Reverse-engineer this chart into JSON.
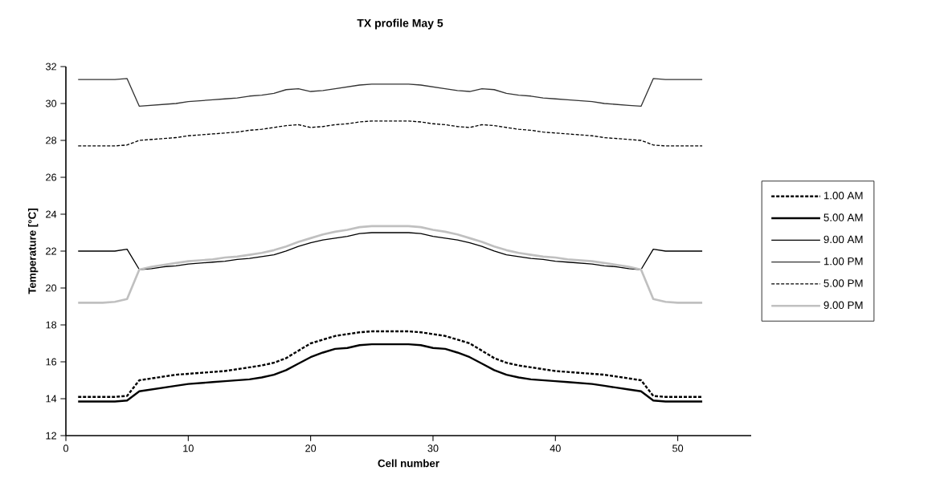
{
  "chart_data": {
    "type": "line",
    "title": "TX profile May 5",
    "xlabel": "Cell number",
    "ylabel": "Temperature [°C]",
    "x": [
      1,
      2,
      3,
      4,
      5,
      6,
      7,
      8,
      9,
      10,
      11,
      12,
      13,
      14,
      15,
      16,
      17,
      18,
      19,
      20,
      21,
      22,
      23,
      24,
      25,
      26,
      27,
      28,
      29,
      30,
      31,
      32,
      33,
      34,
      35,
      36,
      37,
      38,
      39,
      40,
      41,
      42,
      43,
      44,
      45,
      46,
      47,
      48,
      49,
      50,
      51,
      52
    ],
    "xlim": [
      0,
      56
    ],
    "xticks": [
      0,
      10,
      20,
      30,
      40,
      50
    ],
    "ylim": [
      12,
      32
    ],
    "yticks": [
      12,
      14,
      16,
      18,
      20,
      22,
      24,
      26,
      28,
      30,
      32
    ],
    "grid": false,
    "legend": "right",
    "marker": "none",
    "series": [
      {
        "name": "1.00 AM",
        "color": "#000000",
        "line_style": "dashed",
        "values": [
          14.1,
          14.1,
          14.1,
          14.1,
          14.15,
          15.0,
          15.1,
          15.2,
          15.3,
          15.35,
          15.4,
          15.45,
          15.5,
          15.6,
          15.7,
          15.8,
          15.95,
          16.2,
          16.6,
          17.0,
          17.2,
          17.4,
          17.5,
          17.6,
          17.65,
          17.65,
          17.65,
          17.65,
          17.6,
          17.5,
          17.4,
          17.2,
          17.0,
          16.6,
          16.2,
          15.95,
          15.8,
          15.7,
          15.6,
          15.5,
          15.45,
          15.4,
          15.35,
          15.3,
          15.2,
          15.1,
          15.0,
          14.15,
          14.1,
          14.1,
          14.1,
          14.1
        ]
      },
      {
        "name": "5.00 AM",
        "color": "#000000",
        "line_style": "solid",
        "values": [
          13.85,
          13.85,
          13.85,
          13.85,
          13.9,
          14.4,
          14.5,
          14.6,
          14.7,
          14.8,
          14.85,
          14.9,
          14.95,
          15.0,
          15.05,
          15.15,
          15.3,
          15.55,
          15.9,
          16.25,
          16.5,
          16.7,
          16.75,
          16.9,
          16.95,
          16.95,
          16.95,
          16.95,
          16.9,
          16.75,
          16.7,
          16.5,
          16.25,
          15.9,
          15.55,
          15.3,
          15.15,
          15.05,
          15.0,
          14.95,
          14.9,
          14.85,
          14.8,
          14.7,
          14.6,
          14.5,
          14.4,
          13.9,
          13.85,
          13.85,
          13.85,
          13.85
        ]
      },
      {
        "name": "9.00 AM",
        "color": "#000000",
        "line_style": "solid",
        "values": [
          22.0,
          22.0,
          22.0,
          22.0,
          22.1,
          21.0,
          21.05,
          21.15,
          21.2,
          21.3,
          21.35,
          21.4,
          21.45,
          21.55,
          21.6,
          21.7,
          21.8,
          22.0,
          22.25,
          22.45,
          22.6,
          22.7,
          22.8,
          22.95,
          23.0,
          23.0,
          23.0,
          23.0,
          22.95,
          22.8,
          22.7,
          22.6,
          22.45,
          22.25,
          22.0,
          21.8,
          21.7,
          21.6,
          21.55,
          21.45,
          21.4,
          21.35,
          21.3,
          21.2,
          21.15,
          21.05,
          21.0,
          22.1,
          22.0,
          22.0,
          22.0,
          22.0
        ]
      },
      {
        "name": "1.00 PM",
        "color": "#333333",
        "line_style": "solid",
        "values": [
          31.3,
          31.3,
          31.3,
          31.3,
          31.35,
          29.85,
          29.9,
          29.95,
          30.0,
          30.1,
          30.15,
          30.2,
          30.25,
          30.3,
          30.4,
          30.45,
          30.55,
          30.75,
          30.8,
          30.65,
          30.7,
          30.8,
          30.9,
          31.0,
          31.05,
          31.05,
          31.05,
          31.05,
          31.0,
          30.9,
          30.8,
          30.7,
          30.65,
          30.8,
          30.75,
          30.55,
          30.45,
          30.4,
          30.3,
          30.25,
          30.2,
          30.15,
          30.1,
          30.0,
          29.95,
          29.9,
          29.85,
          31.35,
          31.3,
          31.3,
          31.3,
          31.3
        ]
      },
      {
        "name": "5.00 PM",
        "color": "#000000",
        "line_style": "dashed",
        "values": [
          27.7,
          27.7,
          27.7,
          27.7,
          27.75,
          28.0,
          28.05,
          28.1,
          28.15,
          28.25,
          28.3,
          28.35,
          28.4,
          28.45,
          28.55,
          28.6,
          28.7,
          28.8,
          28.85,
          28.7,
          28.75,
          28.85,
          28.9,
          29.0,
          29.05,
          29.05,
          29.05,
          29.05,
          29.0,
          28.9,
          28.85,
          28.75,
          28.7,
          28.85,
          28.8,
          28.7,
          28.6,
          28.55,
          28.45,
          28.4,
          28.35,
          28.3,
          28.25,
          28.15,
          28.1,
          28.05,
          28.0,
          27.75,
          27.7,
          27.7,
          27.7,
          27.7
        ]
      },
      {
        "name": "9.00 PM",
        "color": "#c0c0c0",
        "line_style": "solid",
        "values": [
          19.2,
          19.2,
          19.2,
          19.25,
          19.4,
          21.0,
          21.15,
          21.25,
          21.35,
          21.45,
          21.5,
          21.55,
          21.65,
          21.7,
          21.8,
          21.9,
          22.05,
          22.25,
          22.5,
          22.7,
          22.9,
          23.05,
          23.15,
          23.3,
          23.35,
          23.35,
          23.35,
          23.35,
          23.3,
          23.15,
          23.05,
          22.9,
          22.7,
          22.5,
          22.25,
          22.05,
          21.9,
          21.8,
          21.7,
          21.65,
          21.55,
          21.5,
          21.45,
          21.35,
          21.25,
          21.15,
          21.0,
          19.4,
          19.25,
          19.2,
          19.2,
          19.2
        ]
      }
    ]
  }
}
